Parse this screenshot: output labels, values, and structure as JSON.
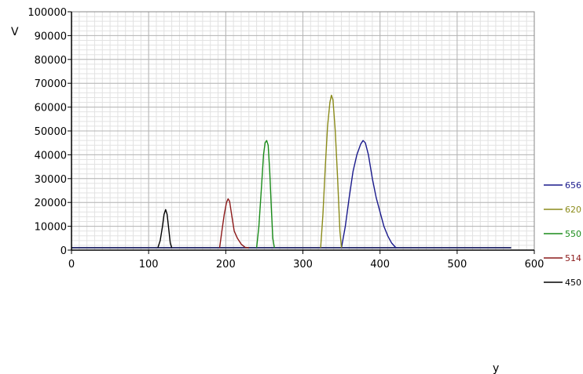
{
  "chart_data": {
    "type": "line",
    "xlabel": "y",
    "ylabel": "V",
    "xlim": [
      0,
      600
    ],
    "ylim": [
      0,
      100000
    ],
    "x_ticks": [
      0,
      100,
      200,
      300,
      400,
      500,
      600
    ],
    "y_ticks": [
      0,
      10000,
      20000,
      30000,
      40000,
      50000,
      60000,
      70000,
      80000,
      90000,
      100000
    ],
    "grid": true,
    "minor_grid": true,
    "legend_position": "right",
    "baseline": {
      "x_start": 0,
      "x_end": 570,
      "value": 1000
    },
    "series": [
      {
        "name": "656",
        "color": "#1a1a8c",
        "x": [
          350,
          355,
          360,
          365,
          370,
          375,
          378,
          381,
          385,
          390,
          395,
          400,
          405,
          410,
          415,
          420,
          422
        ],
        "y": [
          1000,
          10000,
          22000,
          33000,
          40000,
          44500,
          46000,
          45000,
          40000,
          30000,
          22000,
          16000,
          10000,
          6000,
          3000,
          1200,
          1000
        ]
      },
      {
        "name": "620",
        "color": "#8b8b1a",
        "x": [
          323,
          326,
          329,
          332,
          335,
          337,
          339,
          342,
          345,
          348,
          350
        ],
        "y": [
          1000,
          15000,
          35000,
          52000,
          62000,
          65000,
          63000,
          50000,
          30000,
          8000,
          1000
        ]
      },
      {
        "name": "550",
        "color": "#1a8c1a",
        "x": [
          240,
          243,
          246,
          249,
          251,
          253,
          255,
          257,
          259,
          261,
          263
        ],
        "y": [
          1000,
          10000,
          25000,
          40000,
          45000,
          46000,
          44000,
          33000,
          18000,
          5000,
          1000
        ]
      },
      {
        "name": "514",
        "color": "#8c1a1a",
        "x": [
          192,
          195,
          198,
          201,
          203,
          205,
          208,
          211,
          215,
          220,
          225,
          230
        ],
        "y": [
          1000,
          8000,
          15000,
          20000,
          21500,
          20500,
          14000,
          8000,
          5000,
          2500,
          1200,
          1000
        ]
      },
      {
        "name": "450",
        "color": "#000000",
        "x": [
          112,
          115,
          118,
          120,
          122,
          124,
          126,
          128,
          130
        ],
        "y": [
          1000,
          4000,
          10000,
          15000,
          17000,
          15000,
          9000,
          3000,
          1000
        ]
      }
    ]
  }
}
